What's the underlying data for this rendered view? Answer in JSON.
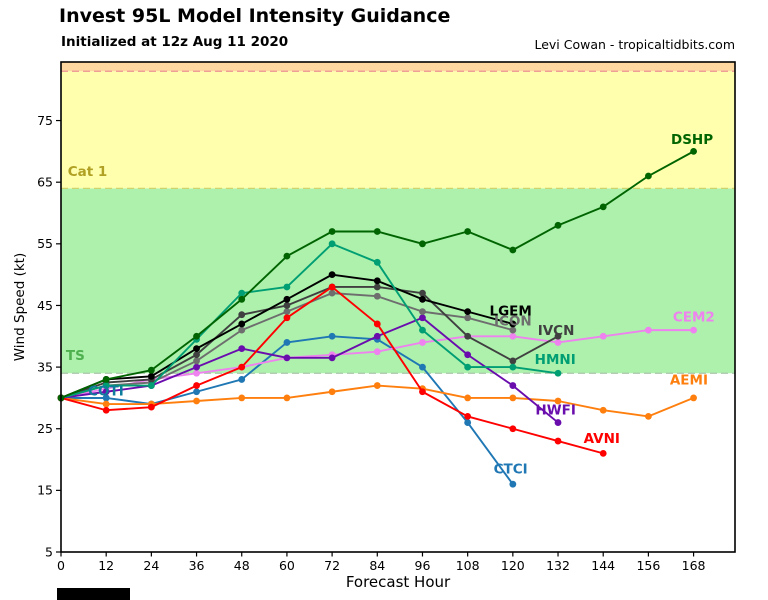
{
  "header": {
    "title": "Invest 95L Model Intensity Guidance",
    "subtitle": "Initialized at 12z Aug 11 2020",
    "credit": "Levi Cowan - tropicaltidbits.com"
  },
  "chart_data": {
    "type": "line",
    "title": "Invest 95L Model Intensity Guidance",
    "xlabel": "Forecast Hour",
    "ylabel": "Wind Speed (kt)",
    "xlim": [
      0,
      179
    ],
    "ylim": [
      5,
      84.5
    ],
    "xticks": [
      0,
      12,
      24,
      36,
      48,
      60,
      72,
      84,
      96,
      108,
      120,
      132,
      144,
      156,
      168
    ],
    "yticks": [
      5,
      15,
      25,
      35,
      45,
      55,
      65,
      75
    ],
    "x_step_hours": 12,
    "grid": false,
    "legend": "inline-end-labels",
    "bands": [
      {
        "from": 34,
        "to": 64,
        "color": "#adf1ad"
      },
      {
        "from": 64,
        "to": 83,
        "color": "#ffffae"
      },
      {
        "from": 83,
        "to": 84.5,
        "color": "#fdd6a0"
      }
    ],
    "thresholds": [
      {
        "value": 34,
        "line_color": "#a9c4a9",
        "label": "TS",
        "label_color": "#4eb04e",
        "label_x": 1.3,
        "label_y": 36.9
      },
      {
        "value": 64,
        "line_color": "#cfd36e",
        "label": "Cat 1",
        "label_color": "#b0a023",
        "label_x": 1.8,
        "label_y": 66.7
      },
      {
        "value": 83,
        "line_color": "#ec9393"
      }
    ],
    "series": [
      {
        "name": "COTI",
        "color": "#0e7c9c",
        "values": [
          30,
          30
        ],
        "label_x": 7.2,
        "label_y": 31.1
      },
      {
        "name": "CTCI",
        "color": "#1f77b4",
        "values": [
          30,
          30,
          29,
          31,
          33,
          39,
          40,
          39.5,
          35,
          26,
          16
        ],
        "label_x": 114.9,
        "label_y": 18.5
      },
      {
        "name": "AEMI",
        "color": "#ff7f0e",
        "values": [
          30,
          29,
          29,
          29.5,
          30,
          30,
          31,
          32,
          31.5,
          30,
          30,
          29.5,
          28,
          27,
          30
        ],
        "label_x": 161.7,
        "label_y": 32.9
      },
      {
        "name": "CEM2",
        "color": "#ee82ee",
        "values": [
          30,
          31.5,
          33,
          34,
          35,
          36.5,
          37,
          37.5,
          39,
          40,
          40,
          39,
          40,
          41,
          41
        ],
        "label_x": 162.5,
        "label_y": 43.1
      },
      {
        "name": "HWFI",
        "color": "#6a0dad",
        "values": [
          30,
          31,
          32,
          35,
          38,
          36.5,
          36.5,
          40,
          43,
          37,
          32,
          26
        ],
        "label_x": 126.0,
        "label_y": 28.0
      },
      {
        "name": "ICON",
        "color": "#6e6e6e",
        "values": [
          30,
          32,
          32.5,
          36,
          41,
          44,
          47,
          46.5,
          44,
          43,
          41
        ],
        "label_x": 115.0,
        "label_y": 42.5
      },
      {
        "name": "IVCN",
        "color": "#404040",
        "values": [
          30,
          32.5,
          33,
          37,
          43.5,
          45,
          48,
          48,
          47,
          40,
          36,
          40
        ],
        "label_x": 126.6,
        "label_y": 40.9
      },
      {
        "name": "LGEM",
        "color": "#000000",
        "values": [
          30,
          33,
          33.5,
          38,
          42,
          46,
          50,
          49,
          46,
          44,
          42
        ],
        "label_x": 113.8,
        "label_y": 44.1
      },
      {
        "name": "HMNI",
        "color": "#009e73",
        "values": [
          30,
          32,
          32,
          39.5,
          47,
          48,
          55,
          52,
          41,
          35,
          35,
          34
        ],
        "label_x": 125.8,
        "label_y": 36.2
      },
      {
        "name": "AVNI",
        "color": "#ff0000",
        "values": [
          30,
          28,
          28.5,
          32,
          35,
          43,
          48,
          42,
          31,
          27,
          25,
          23,
          21
        ],
        "label_x": 138.8,
        "label_y": 23.4
      },
      {
        "name": "DSHP",
        "color": "#006400",
        "values": [
          30,
          33,
          34.5,
          40,
          46,
          53,
          57,
          57,
          55,
          57,
          54,
          58,
          61,
          66,
          70
        ],
        "label_x": 162.0,
        "label_y": 71.9
      }
    ]
  }
}
